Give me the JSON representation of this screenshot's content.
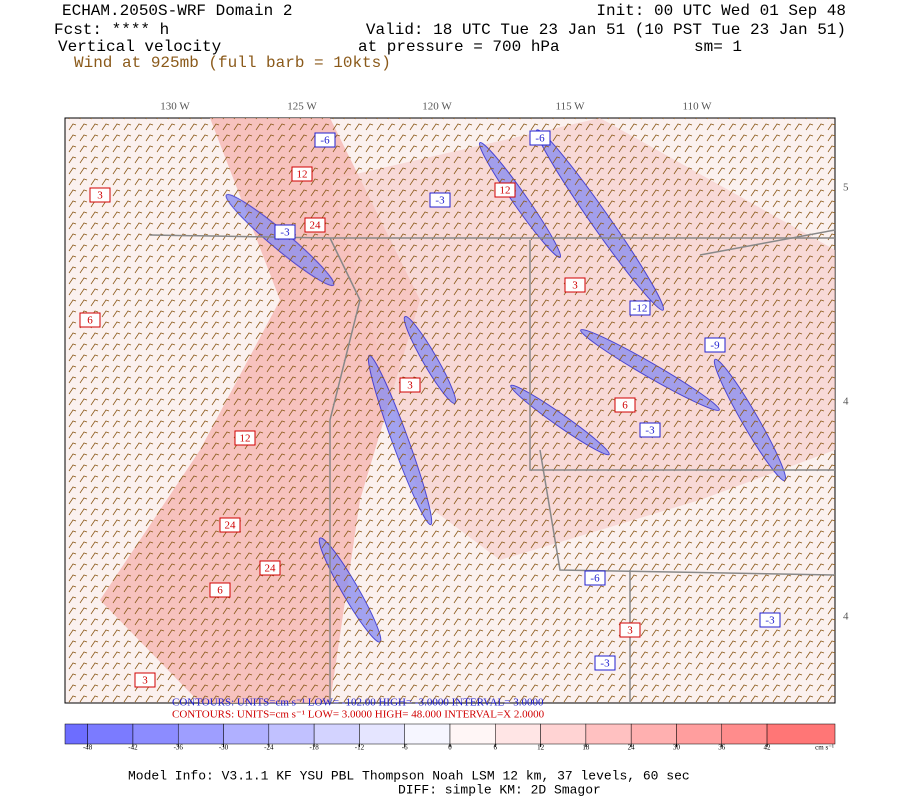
{
  "header": {
    "title": "ECHAM.2050S-WRF Domain 2",
    "init": "Init: 00 UTC Wed 01 Sep 48",
    "fcst": "Fcst: **** h",
    "valid": "Valid: 18 UTC Tue 23 Jan 51 (10 PST Tue 23 Jan 51)",
    "field": "Vertical velocity",
    "level": "at pressure =  700 hPa",
    "smooth": "sm= 1",
    "wind": "Wind at 925mb (full barb = 10kts)"
  },
  "map": {
    "lon_labels": [
      "130 W",
      "125 W",
      "120 W",
      "115 W",
      "110 W"
    ],
    "lat_labels": [
      "5",
      "4",
      "4"
    ],
    "contour_labels": [
      "-3",
      "12",
      "24",
      "-6",
      "3",
      "-3",
      "12",
      "-6",
      "3",
      "24",
      "-12",
      "6",
      "-3",
      "3",
      "12",
      "6",
      "24",
      "-6",
      "3",
      "-3",
      "-9",
      "3",
      "-3",
      "6"
    ]
  },
  "contours": {
    "blue": "CONTOURS:  UNITS=cm s⁻¹  LOW=  -102.00     HIGH=  -3.0000       INTERVAL=  3.0000",
    "red": "CONTOURS:  UNITS=cm s⁻¹  LOW=  3.0000     HIGH=  48.000       INTERVAL=X  2.0000"
  },
  "colorbar": {
    "ticks": [
      -48,
      -42,
      -36,
      -30,
      -24,
      -18,
      -12,
      -6,
      0,
      6,
      12,
      18,
      24,
      30,
      36,
      42
    ],
    "lim": [
      -51,
      51
    ],
    "units": "cm s⁻¹"
  },
  "footer": {
    "model": "Model Info: V3.1.1     KF       YSU PBL   Thompson     Noah LSM   12 km,     37 levels,     60 sec",
    "diff": "DIFF: simple KM: 2D Smagor"
  }
}
